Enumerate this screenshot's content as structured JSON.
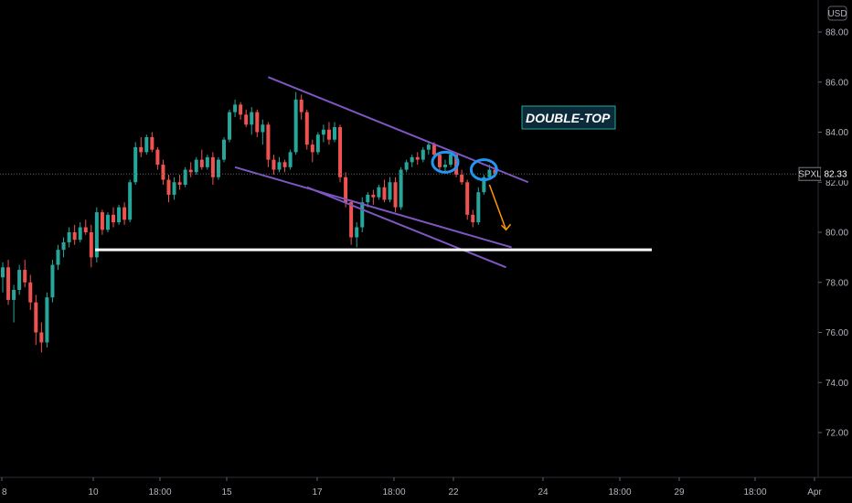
{
  "app": {
    "currency": "USD",
    "symbol": "SPXL",
    "last_price": "82.33"
  },
  "annotation": {
    "label": "DOUBLE-TOP"
  },
  "colors": {
    "background": "#000000",
    "up": "#26a69a",
    "down": "#ef5350",
    "channel": "#7e57c2",
    "support": "#ffffff",
    "circle": "#2196f3",
    "arrow": "#ff9800",
    "note_bg": "#0b2a3a",
    "note_border": "#26a69a"
  },
  "chart_data": {
    "type": "candlestick",
    "y_axis": {
      "ticks": [
        "88.00",
        "86.00",
        "84.00",
        "82.00",
        "80.00",
        "78.00",
        "76.00",
        "74.00",
        "72.00"
      ],
      "range": [
        70.5,
        89.5
      ]
    },
    "x_axis": {
      "ticks": [
        "8",
        "10",
        "18:00",
        "15",
        "17",
        "18:00",
        "22",
        "24",
        "18:00",
        "29",
        "18:00",
        "Apr"
      ]
    },
    "candles": [
      [
        78.2,
        78.8,
        77.6,
        78.6
      ],
      [
        78.6,
        78.9,
        77.1,
        77.3
      ],
      [
        77.3,
        77.9,
        76.4,
        77.7
      ],
      [
        77.7,
        78.7,
        77.5,
        78.5
      ],
      [
        78.5,
        78.9,
        77.8,
        78.0
      ],
      [
        78.0,
        78.3,
        76.9,
        77.2
      ],
      [
        77.2,
        77.5,
        75.5,
        76.0
      ],
      [
        76.0,
        76.4,
        75.2,
        75.6
      ],
      [
        75.6,
        77.6,
        75.4,
        77.4
      ],
      [
        77.4,
        78.9,
        77.2,
        78.7
      ],
      [
        78.7,
        79.5,
        78.5,
        79.3
      ],
      [
        79.3,
        79.8,
        79.0,
        79.6
      ],
      [
        79.6,
        80.2,
        79.4,
        80.0
      ],
      [
        80.0,
        80.3,
        79.5,
        79.7
      ],
      [
        79.7,
        80.4,
        79.6,
        80.2
      ],
      [
        80.2,
        80.5,
        79.9,
        80.0
      ],
      [
        80.0,
        80.3,
        78.6,
        79.0
      ],
      [
        79.0,
        81.0,
        78.8,
        80.8
      ],
      [
        80.8,
        80.9,
        79.9,
        80.1
      ],
      [
        80.1,
        80.8,
        80.0,
        80.7
      ],
      [
        80.7,
        81.0,
        80.2,
        80.4
      ],
      [
        80.4,
        81.1,
        80.3,
        81.0
      ],
      [
        81.0,
        81.2,
        80.3,
        80.5
      ],
      [
        80.5,
        82.1,
        80.4,
        82.0
      ],
      [
        82.0,
        83.6,
        81.9,
        83.4
      ],
      [
        83.4,
        83.8,
        83.0,
        83.2
      ],
      [
        83.2,
        83.9,
        83.1,
        83.8
      ],
      [
        83.8,
        84.0,
        83.2,
        83.3
      ],
      [
        83.3,
        83.4,
        82.5,
        82.7
      ],
      [
        82.7,
        82.9,
        81.9,
        82.1
      ],
      [
        82.1,
        82.3,
        81.2,
        81.5
      ],
      [
        81.5,
        82.2,
        81.3,
        82.0
      ],
      [
        82.0,
        82.3,
        81.7,
        81.9
      ],
      [
        81.9,
        82.6,
        81.8,
        82.5
      ],
      [
        82.5,
        82.8,
        82.2,
        82.4
      ],
      [
        82.4,
        83.0,
        82.3,
        82.9
      ],
      [
        82.9,
        83.3,
        82.5,
        82.6
      ],
      [
        82.6,
        83.1,
        82.5,
        83.0
      ],
      [
        83.0,
        83.2,
        81.9,
        82.2
      ],
      [
        82.2,
        83.0,
        82.1,
        82.9
      ],
      [
        82.9,
        83.8,
        82.8,
        83.7
      ],
      [
        83.7,
        84.9,
        83.6,
        84.8
      ],
      [
        84.8,
        85.3,
        84.6,
        85.1
      ],
      [
        85.1,
        85.2,
        84.5,
        84.7
      ],
      [
        84.7,
        84.9,
        84.2,
        84.3
      ],
      [
        84.3,
        85.0,
        83.9,
        84.8
      ],
      [
        84.8,
        84.9,
        83.8,
        84.0
      ],
      [
        84.0,
        84.5,
        83.5,
        84.3
      ],
      [
        84.3,
        84.4,
        82.6,
        82.9
      ],
      [
        82.9,
        83.1,
        82.3,
        82.5
      ],
      [
        82.5,
        83.0,
        82.4,
        82.8
      ],
      [
        82.8,
        82.9,
        82.4,
        82.6
      ],
      [
        82.6,
        83.3,
        82.5,
        83.2
      ],
      [
        83.2,
        85.6,
        83.1,
        85.3
      ],
      [
        85.3,
        85.5,
        84.5,
        84.8
      ],
      [
        84.8,
        84.9,
        83.3,
        83.5
      ],
      [
        83.5,
        83.7,
        82.8,
        83.2
      ],
      [
        83.2,
        84.0,
        83.1,
        83.9
      ],
      [
        83.9,
        84.3,
        83.6,
        84.1
      ],
      [
        84.1,
        84.4,
        83.5,
        83.7
      ],
      [
        83.7,
        84.4,
        83.6,
        84.2
      ],
      [
        84.2,
        84.3,
        82.0,
        82.2
      ],
      [
        82.2,
        82.4,
        81.0,
        81.2
      ],
      [
        81.2,
        81.3,
        79.5,
        79.8
      ],
      [
        79.8,
        80.4,
        79.4,
        80.2
      ],
      [
        80.2,
        81.4,
        80.0,
        81.2
      ],
      [
        81.2,
        81.6,
        81.0,
        81.5
      ],
      [
        81.5,
        81.7,
        81.1,
        81.4
      ],
      [
        81.4,
        81.9,
        81.3,
        81.8
      ],
      [
        81.8,
        82.1,
        81.2,
        81.3
      ],
      [
        81.3,
        82.2,
        81.2,
        82.0
      ],
      [
        82.0,
        82.2,
        80.8,
        81.0
      ],
      [
        81.0,
        82.6,
        80.9,
        82.5
      ],
      [
        82.5,
        82.9,
        82.4,
        82.8
      ],
      [
        82.8,
        83.1,
        82.6,
        83.0
      ],
      [
        83.0,
        83.2,
        82.7,
        82.9
      ],
      [
        82.9,
        83.4,
        82.8,
        83.3
      ],
      [
        83.3,
        83.6,
        83.1,
        83.5
      ],
      [
        83.5,
        83.6,
        83.0,
        83.1
      ],
      [
        83.1,
        83.2,
        82.4,
        82.6
      ],
      [
        82.6,
        82.9,
        82.4,
        82.7
      ],
      [
        82.7,
        83.2,
        82.6,
        83.1
      ],
      [
        83.1,
        83.2,
        82.2,
        82.3
      ],
      [
        82.3,
        82.5,
        81.9,
        82.0
      ],
      [
        82.0,
        82.1,
        80.5,
        80.7
      ],
      [
        80.7,
        80.9,
        80.2,
        80.4
      ],
      [
        80.4,
        81.8,
        80.3,
        81.6
      ],
      [
        81.6,
        82.3,
        81.5,
        82.2
      ],
      [
        82.2,
        82.7,
        82.1,
        82.5
      ],
      [
        82.5,
        82.6,
        82.2,
        82.33
      ]
    ],
    "annotations": [
      {
        "type": "channel",
        "lines": [
          {
            "from": [
              48,
              86.2
            ],
            "to": [
              95,
              82.0
            ]
          },
          {
            "from": [
              42,
              82.6
            ],
            "to": [
              92,
              79.4
            ]
          },
          {
            "from": [
              55,
              81.8
            ],
            "to": [
              91,
              78.6
            ]
          }
        ]
      },
      {
        "type": "support",
        "from": [
          16,
          79.3
        ],
        "to": [
          110,
          79.3
        ]
      },
      {
        "type": "circle",
        "at": [
          80,
          82.8
        ]
      },
      {
        "type": "circle",
        "at": [
          87,
          82.5
        ]
      },
      {
        "type": "arrow",
        "from": [
          88,
          81.9
        ],
        "to": [
          91,
          80.1
        ]
      }
    ]
  }
}
